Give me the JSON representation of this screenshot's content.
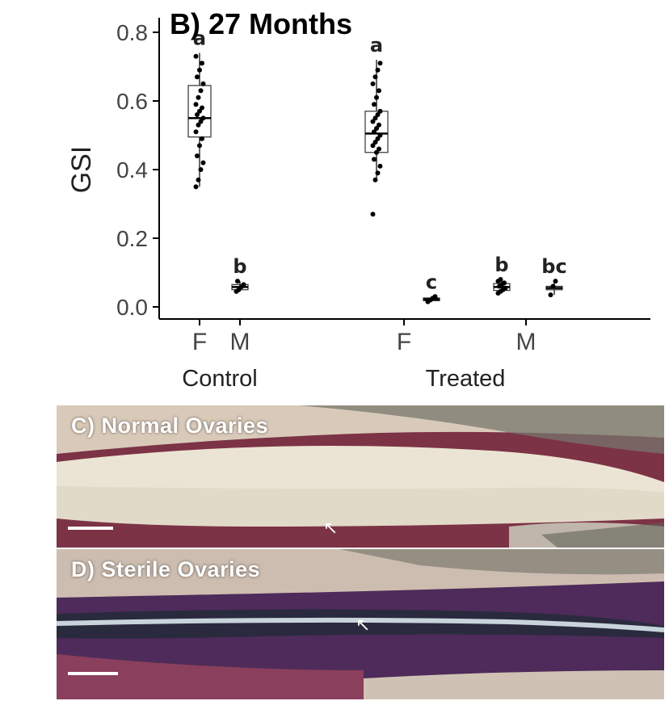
{
  "chart_data": {
    "type": "boxplot",
    "title": "B) 27 Months",
    "ylabel": "GSI",
    "xlabel": "",
    "ylim": [
      -0.03,
      0.82
    ],
    "yticks": [
      0.0,
      0.2,
      0.4,
      0.6,
      0.8
    ],
    "ytick_labels": [
      "0.0",
      "0.2",
      "0.4",
      "0.6",
      "0.8"
    ],
    "group_labels": [
      "Control",
      "Treated"
    ],
    "groups": [
      {
        "group": "Control",
        "sex": "F",
        "median": 0.55,
        "q1": 0.495,
        "q3": 0.645,
        "min": 0.35,
        "max": 0.74,
        "letter": "a",
        "points": [
          0.35,
          0.37,
          0.4,
          0.42,
          0.44,
          0.47,
          0.49,
          0.51,
          0.53,
          0.54,
          0.55,
          0.56,
          0.57,
          0.58,
          0.59,
          0.61,
          0.63,
          0.65,
          0.67,
          0.69,
          0.71,
          0.73
        ]
      },
      {
        "group": "Control",
        "sex": "M",
        "median": 0.058,
        "q1": 0.05,
        "q3": 0.065,
        "min": 0.045,
        "max": 0.075,
        "letter": "b",
        "points": [
          0.045,
          0.05,
          0.058,
          0.065,
          0.075
        ]
      },
      {
        "group": "Treated",
        "sex": "F",
        "median": 0.505,
        "q1": 0.45,
        "q3": 0.57,
        "min": 0.37,
        "max": 0.72,
        "letter": "a",
        "points": [
          0.27,
          0.37,
          0.39,
          0.41,
          0.43,
          0.45,
          0.46,
          0.47,
          0.48,
          0.49,
          0.5,
          0.51,
          0.52,
          0.53,
          0.54,
          0.55,
          0.56,
          0.57,
          0.59,
          0.61,
          0.63,
          0.65,
          0.67,
          0.69,
          0.71
        ]
      },
      {
        "group": "Treated",
        "sex": "F",
        "median": 0.022,
        "q1": 0.018,
        "q3": 0.026,
        "min": 0.015,
        "max": 0.03,
        "letter": "c",
        "points": [
          0.015,
          0.02,
          0.025,
          0.03
        ]
      },
      {
        "group": "Treated",
        "sex": "M",
        "median": 0.058,
        "q1": 0.048,
        "q3": 0.068,
        "min": 0.04,
        "max": 0.08,
        "letter": "b",
        "points": [
          0.04,
          0.045,
          0.05,
          0.055,
          0.06,
          0.065,
          0.07,
          0.075,
          0.08
        ]
      },
      {
        "group": "Treated",
        "sex": "M",
        "median": 0.055,
        "q1": 0.05,
        "q3": 0.06,
        "min": 0.035,
        "max": 0.075,
        "letter": "bc",
        "points": [
          0.035,
          0.06,
          0.075
        ]
      }
    ],
    "grid": false,
    "legend": "none"
  },
  "photos": [
    {
      "label": "C) Normal Ovaries",
      "scale_bar": true,
      "arrow": true
    },
    {
      "label": "D) Sterile Ovaries",
      "scale_bar": true,
      "arrow": true
    }
  ]
}
